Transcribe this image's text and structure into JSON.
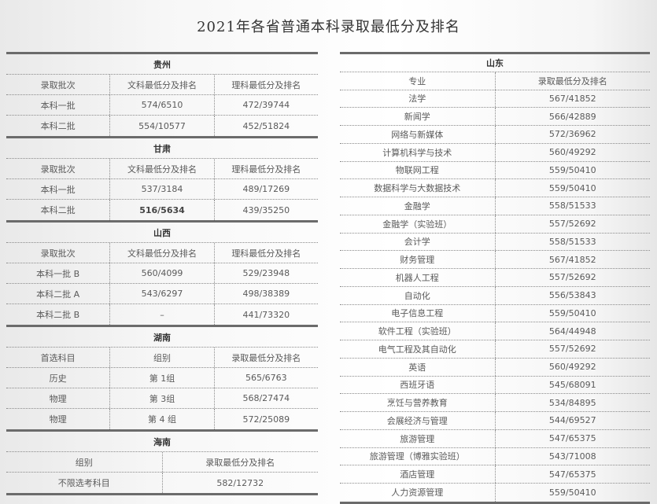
{
  "title": "2021年各省普通本科录取最低分及排名",
  "left_sections": [
    {
      "province": "贵州",
      "headers": [
        "录取批次",
        "文科最低分及排名",
        "理科最低分及排名"
      ],
      "rows": [
        [
          "本科一批",
          "574/6510",
          "472/39744"
        ],
        [
          "本科二批",
          "554/10577",
          "452/51824"
        ]
      ]
    },
    {
      "province": "甘肃",
      "headers": [
        "录取批次",
        "文科最低分及排名",
        "理科最低分及排名"
      ],
      "rows": [
        [
          "本科一批",
          "537/3184",
          "489/17269"
        ],
        [
          "本科二批",
          "516/5634",
          "439/35250"
        ]
      ]
    },
    {
      "province": "山西",
      "headers": [
        "录取批次",
        "文科最低分及排名",
        "理科最低分及排名"
      ],
      "rows": [
        [
          "本科一批 B",
          "560/4099",
          "529/23948"
        ],
        [
          "本科二批 A",
          "543/6297",
          "498/38389"
        ],
        [
          "本科二批 B",
          "–",
          "441/73320"
        ]
      ]
    },
    {
      "province": "湖南",
      "headers": [
        "首选科目",
        "组别",
        "录取最低分及排名"
      ],
      "rows": [
        [
          "历史",
          "第 1组",
          "565/6763"
        ],
        [
          "物理",
          "第 3组",
          "568/27474"
        ],
        [
          "物理",
          "第 4 组",
          "572/25089"
        ]
      ]
    },
    {
      "province": "海南",
      "headers": [
        "组别",
        "录取最低分及排名"
      ],
      "rows": [
        [
          "不限选考科目",
          "582/12732"
        ]
      ]
    }
  ],
  "right_section": {
    "province": "山东",
    "headers": [
      "专业",
      "录取最低分及排名"
    ],
    "rows": [
      [
        "法学",
        "567/41852"
      ],
      [
        "新闻学",
        "566/42889"
      ],
      [
        "网络与新媒体",
        "572/36962"
      ],
      [
        "计算机科学与技术",
        "560/49292"
      ],
      [
        "物联网工程",
        "559/50410"
      ],
      [
        "数据科学与大数据技术",
        "559/50410"
      ],
      [
        "金融学",
        "558/51533"
      ],
      [
        "金融学（实验班）",
        "557/52692"
      ],
      [
        "会计学",
        "558/51533"
      ],
      [
        "财务管理",
        "567/41852"
      ],
      [
        "机器人工程",
        "557/52692"
      ],
      [
        "自动化",
        "556/53843"
      ],
      [
        "电子信息工程",
        "559/50410"
      ],
      [
        "软件工程（实验班）",
        "564/44948"
      ],
      [
        "电气工程及其自动化",
        "557/52692"
      ],
      [
        "英语",
        "560/49292"
      ],
      [
        "西班牙语",
        "545/68091"
      ],
      [
        "烹饪与营养教育",
        "534/84895"
      ],
      [
        "会展经济与管理",
        "544/69527"
      ],
      [
        "旅游管理",
        "547/65375"
      ],
      [
        "旅游管理（博雅实验班）",
        "543/71008"
      ],
      [
        "酒店管理",
        "547/65375"
      ],
      [
        "人力资源管理",
        "559/50410"
      ]
    ]
  }
}
